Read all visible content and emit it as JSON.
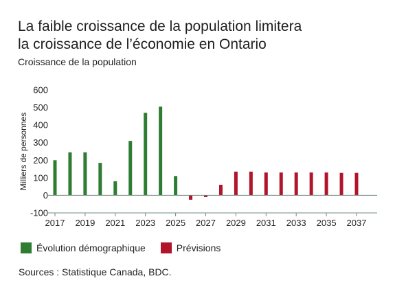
{
  "title_line1": "La faible croissance de la population limitera",
  "title_line2": "la croissance de l’économie en Ontario",
  "subtitle": "Croissance de la population",
  "source": "Sources : Statistique Canada, BDC.",
  "colors": {
    "historical": "#2e7d32",
    "forecast": "#b0152b",
    "axis": "#6e8a80",
    "text": "#222222"
  },
  "legend": [
    {
      "label": "Évolution démographique",
      "series": "historical"
    },
    {
      "label": "Prévisions",
      "series": "forecast"
    }
  ],
  "chart_data": {
    "type": "bar",
    "title": "La faible croissance de la population limitera la croissance de l’économie en Ontario",
    "subtitle": "Croissance de la population",
    "xlabel": "",
    "ylabel": "Milliers de personnes",
    "ylim": [
      -100,
      600
    ],
    "yticks": [
      -100,
      0,
      100,
      200,
      300,
      400,
      500,
      600
    ],
    "xlim": [
      2016.5,
      2038.5
    ],
    "xticks": [
      2017,
      2019,
      2021,
      2023,
      2025,
      2027,
      2029,
      2031,
      2033,
      2035,
      2037
    ],
    "grid": false,
    "legend_position": "bottom-left",
    "series": [
      {
        "name": "Évolution démographique",
        "color_key": "historical",
        "x": [
          2017,
          2018,
          2019,
          2020,
          2021,
          2022,
          2023,
          2024,
          2025
        ],
        "values": [
          200,
          245,
          245,
          185,
          80,
          310,
          470,
          505,
          110
        ]
      },
      {
        "name": "Prévisions",
        "color_key": "forecast",
        "x": [
          2026,
          2027,
          2028,
          2029,
          2030,
          2031,
          2032,
          2033,
          2034,
          2035,
          2036,
          2037
        ],
        "values": [
          -25,
          -10,
          60,
          135,
          135,
          130,
          130,
          130,
          130,
          130,
          128,
          128
        ]
      }
    ]
  }
}
